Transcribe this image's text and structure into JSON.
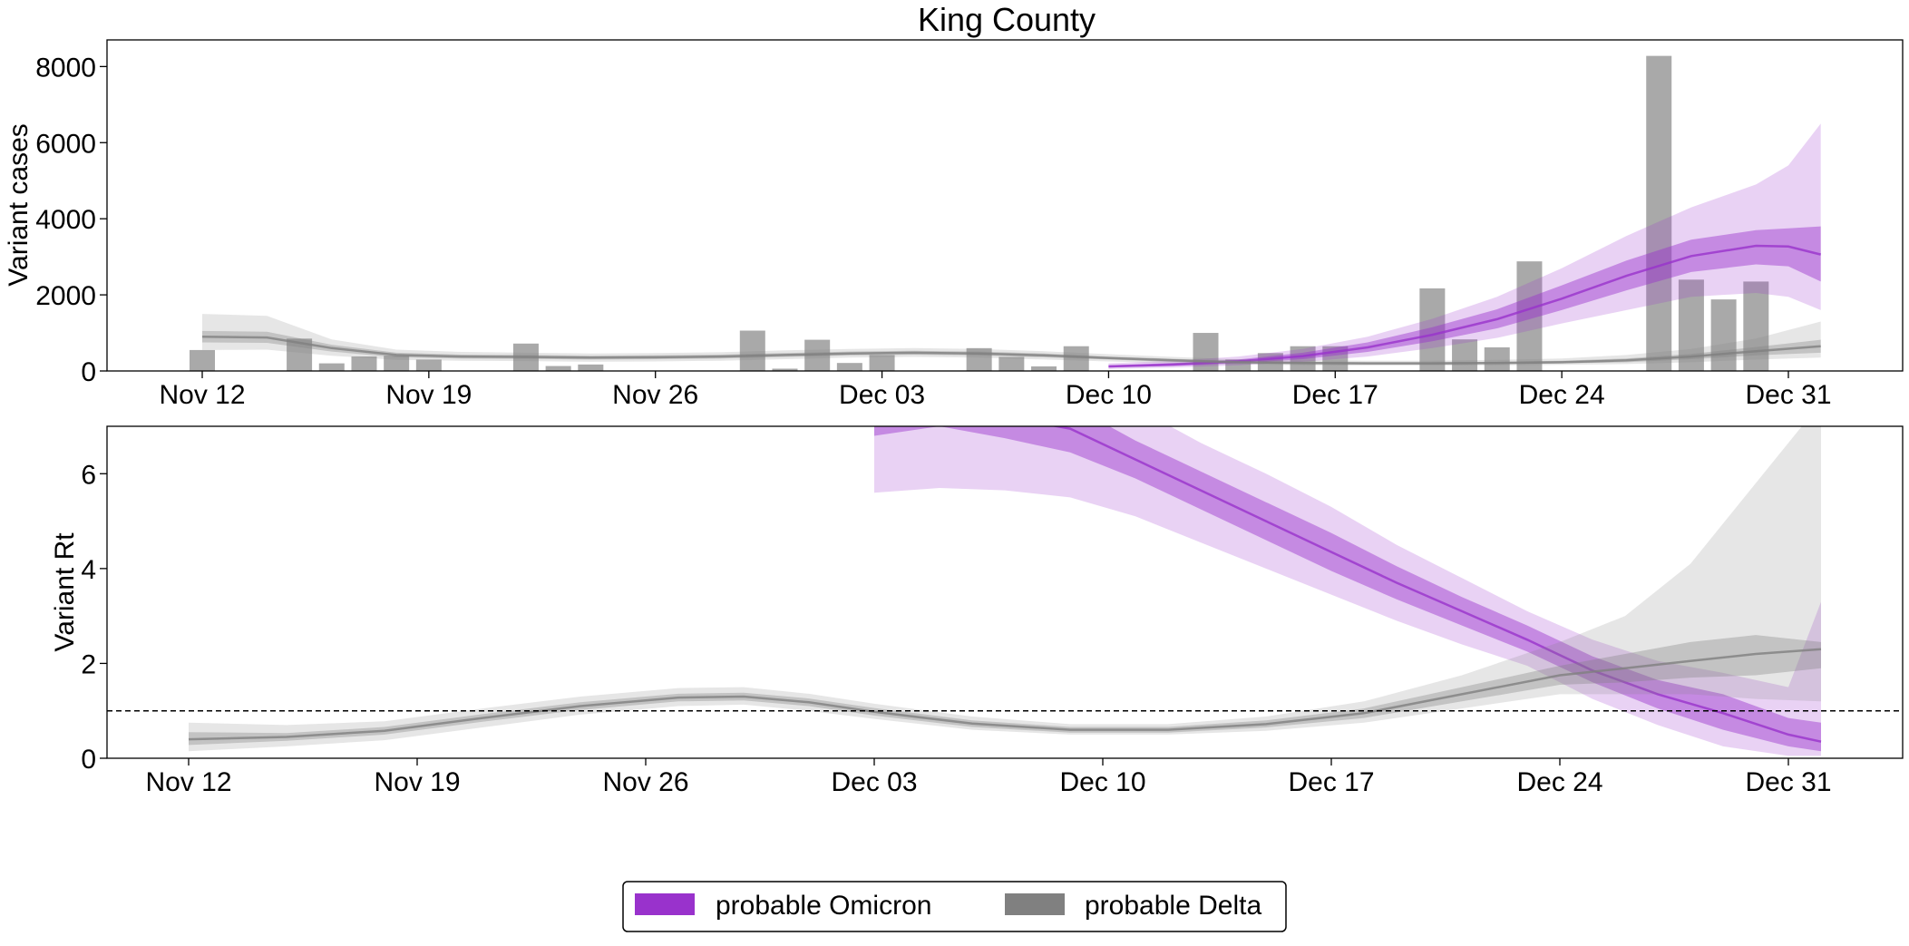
{
  "figure": {
    "title": "King County",
    "legend_position": "bottom-center"
  },
  "colors": {
    "omicron": "#9932cc",
    "delta": "#808080",
    "bars": "#a9a9a9",
    "reference_line": "#000000"
  },
  "legend": [
    {
      "label": "probable Omicron",
      "color": "#9932cc"
    },
    {
      "label": "probable Delta",
      "color": "#808080"
    }
  ],
  "chart_data": [
    {
      "type": "bar",
      "panel": "top",
      "title": "King County",
      "xlabel": "",
      "ylabel": "Variant cases",
      "x_ticks": [
        "Nov 12",
        "Nov 19",
        "Nov 26",
        "Dec 03",
        "Dec 10",
        "Dec 17",
        "Dec 24",
        "Dec 31"
      ],
      "y_ticks": [
        0,
        2000,
        4000,
        6000,
        8000
      ],
      "ylim": [
        0,
        8700
      ],
      "grid": false,
      "bars": {
        "dates": [
          "Nov 12",
          "Nov 15",
          "Nov 16",
          "Nov 17",
          "Nov 18",
          "Nov 19",
          "Nov 22",
          "Nov 23",
          "Nov 24",
          "Nov 29",
          "Nov 30",
          "Dec 01",
          "Dec 02",
          "Dec 03",
          "Dec 06",
          "Dec 07",
          "Dec 08",
          "Dec 09",
          "Dec 13",
          "Dec 14",
          "Dec 15",
          "Dec 16",
          "Dec 17",
          "Dec 20",
          "Dec 21",
          "Dec 22",
          "Dec 23",
          "Dec 27",
          "Dec 28",
          "Dec 29",
          "Dec 30"
        ],
        "values": [
          550,
          850,
          200,
          380,
          400,
          300,
          720,
          130,
          170,
          1060,
          60,
          820,
          210,
          420,
          600,
          370,
          120,
          650,
          1000,
          300,
          470,
          650,
          650,
          2170,
          830,
          620,
          2880,
          8280,
          2400,
          1880,
          2350
        ]
      },
      "series": [
        {
          "name": "probable Omicron",
          "dates": [
            "Dec 10",
            "Dec 12",
            "Dec 14",
            "Dec 16",
            "Dec 18",
            "Dec 20",
            "Dec 22",
            "Dec 24",
            "Dec 26",
            "Dec 28",
            "Dec 30",
            "Dec 31",
            "Jan 01"
          ],
          "median": [
            120,
            170,
            250,
            390,
            620,
            950,
            1360,
            1900,
            2500,
            3020,
            3290,
            3270,
            3060
          ],
          "ci50": [
            [
              90,
              150
            ],
            [
              130,
              210
            ],
            [
              200,
              300
            ],
            [
              310,
              480
            ],
            [
              500,
              750
            ],
            [
              780,
              1150
            ],
            [
              1120,
              1620
            ],
            [
              1600,
              2250
            ],
            [
              2120,
              2900
            ],
            [
              2600,
              3450
            ],
            [
              2800,
              3700
            ],
            [
              2750,
              3750
            ],
            [
              2350,
              3800
            ]
          ],
          "ci95": [
            [
              50,
              200
            ],
            [
              90,
              270
            ],
            [
              150,
              380
            ],
            [
              240,
              580
            ],
            [
              380,
              900
            ],
            [
              600,
              1370
            ],
            [
              870,
              1950
            ],
            [
              1250,
              2700
            ],
            [
              1600,
              3550
            ],
            [
              1950,
              4300
            ],
            [
              2050,
              4900
            ],
            [
              1950,
              5400
            ],
            [
              1600,
              6500
            ]
          ]
        },
        {
          "name": "probable Delta",
          "dates": [
            "Nov 12",
            "Nov 14",
            "Nov 16",
            "Nov 18",
            "Nov 20",
            "Nov 22",
            "Nov 24",
            "Nov 26",
            "Nov 28",
            "Nov 30",
            "Dec 02",
            "Dec 04",
            "Dec 06",
            "Dec 08",
            "Dec 10",
            "Dec 12",
            "Dec 14",
            "Dec 16",
            "Dec 18",
            "Dec 20",
            "Dec 22",
            "Dec 24",
            "Dec 26",
            "Dec 28",
            "Dec 30",
            "Jan 01"
          ],
          "median": [
            900,
            880,
            600,
            420,
            380,
            370,
            350,
            360,
            380,
            420,
            460,
            480,
            460,
            410,
            340,
            280,
            230,
            210,
            200,
            200,
            210,
            230,
            280,
            380,
            520,
            650
          ],
          "ci50": [
            [
              750,
              1050
            ],
            [
              740,
              1030
            ],
            [
              510,
              690
            ],
            [
              360,
              480
            ],
            [
              330,
              430
            ],
            [
              320,
              420
            ],
            [
              300,
              400
            ],
            [
              310,
              410
            ],
            [
              330,
              430
            ],
            [
              370,
              470
            ],
            [
              410,
              510
            ],
            [
              430,
              530
            ],
            [
              410,
              510
            ],
            [
              360,
              460
            ],
            [
              300,
              380
            ],
            [
              240,
              320
            ],
            [
              200,
              260
            ],
            [
              180,
              240
            ],
            [
              170,
              230
            ],
            [
              170,
              230
            ],
            [
              180,
              240
            ],
            [
              200,
              270
            ],
            [
              230,
              330
            ],
            [
              310,
              450
            ],
            [
              410,
              630
            ],
            [
              480,
              820
            ]
          ],
          "ci95": [
            [
              550,
              1500
            ],
            [
              560,
              1450
            ],
            [
              400,
              830
            ],
            [
              290,
              560
            ],
            [
              270,
              500
            ],
            [
              260,
              480
            ],
            [
              240,
              460
            ],
            [
              250,
              470
            ],
            [
              270,
              490
            ],
            [
              310,
              540
            ],
            [
              350,
              580
            ],
            [
              370,
              600
            ],
            [
              350,
              580
            ],
            [
              300,
              520
            ],
            [
              250,
              440
            ],
            [
              200,
              370
            ],
            [
              170,
              300
            ],
            [
              150,
              280
            ],
            [
              140,
              270
            ],
            [
              140,
              270
            ],
            [
              150,
              290
            ],
            [
              160,
              330
            ],
            [
              180,
              420
            ],
            [
              230,
              580
            ],
            [
              300,
              850
            ],
            [
              350,
              1300
            ]
          ]
        }
      ]
    },
    {
      "type": "area",
      "panel": "bottom",
      "title": "",
      "xlabel": "",
      "ylabel": "Variant Rt",
      "x_ticks": [
        "Nov 12",
        "Nov 19",
        "Nov 26",
        "Dec 03",
        "Dec 10",
        "Dec 17",
        "Dec 24",
        "Dec 31"
      ],
      "y_ticks": [
        0,
        2,
        4,
        6
      ],
      "ylim": [
        0,
        7
      ],
      "grid": false,
      "reference_line": {
        "y": 1,
        "style": "dashed"
      },
      "series": [
        {
          "name": "probable Omicron",
          "dates": [
            "Dec 03",
            "Dec 05",
            "Dec 07",
            "Dec 09",
            "Dec 11",
            "Dec 13",
            "Dec 15",
            "Dec 17",
            "Dec 19",
            "Dec 21",
            "Dec 23",
            "Dec 25",
            "Dec 27",
            "Dec 29",
            "Dec 31",
            "Jan 01"
          ],
          "median": [
            7.5,
            7.4,
            7.2,
            6.95,
            6.3,
            5.65,
            5.0,
            4.35,
            3.7,
            3.1,
            2.5,
            1.85,
            1.35,
            0.95,
            0.5,
            0.35
          ],
          "ci50": [
            [
              6.8,
              8.2
            ],
            [
              7.0,
              8.0
            ],
            [
              6.75,
              7.7
            ],
            [
              6.45,
              7.45
            ],
            [
              5.9,
              6.7
            ],
            [
              5.25,
              6.05
            ],
            [
              4.6,
              5.4
            ],
            [
              3.95,
              4.75
            ],
            [
              3.35,
              4.05
            ],
            [
              2.8,
              3.4
            ],
            [
              2.25,
              2.8
            ],
            [
              1.6,
              2.15
            ],
            [
              1.05,
              1.65
            ],
            [
              0.6,
              1.35
            ],
            [
              0.25,
              0.85
            ],
            [
              0.15,
              0.75
            ]
          ],
          "ci95": [
            [
              5.6,
              9.0
            ],
            [
              5.7,
              8.8
            ],
            [
              5.65,
              8.5
            ],
            [
              5.5,
              8.1
            ],
            [
              5.1,
              7.4
            ],
            [
              4.55,
              6.65
            ],
            [
              4.0,
              6.0
            ],
            [
              3.45,
              5.3
            ],
            [
              2.9,
              4.5
            ],
            [
              2.4,
              3.8
            ],
            [
              1.95,
              3.1
            ],
            [
              1.25,
              2.5
            ],
            [
              0.7,
              2.05
            ],
            [
              0.25,
              1.8
            ],
            [
              0.05,
              1.5
            ],
            [
              0.05,
              3.3
            ]
          ]
        },
        {
          "name": "probable Delta",
          "dates": [
            "Nov 12",
            "Nov 15",
            "Nov 18",
            "Nov 21",
            "Nov 24",
            "Nov 27",
            "Nov 29",
            "Dec 01",
            "Dec 03",
            "Dec 06",
            "Dec 09",
            "Dec 12",
            "Dec 15",
            "Dec 18",
            "Dec 21",
            "Dec 24",
            "Dec 26",
            "Dec 28",
            "Dec 30",
            "Jan 01"
          ],
          "median": [
            0.4,
            0.45,
            0.58,
            0.85,
            1.1,
            1.28,
            1.3,
            1.18,
            0.98,
            0.73,
            0.6,
            0.6,
            0.72,
            0.95,
            1.35,
            1.75,
            1.9,
            2.05,
            2.2,
            2.3
          ],
          "ci50": [
            [
              0.28,
              0.55
            ],
            [
              0.37,
              0.53
            ],
            [
              0.5,
              0.66
            ],
            [
              0.77,
              0.93
            ],
            [
              1.02,
              1.18
            ],
            [
              1.2,
              1.36
            ],
            [
              1.22,
              1.38
            ],
            [
              1.1,
              1.26
            ],
            [
              0.9,
              1.06
            ],
            [
              0.66,
              0.8
            ],
            [
              0.54,
              0.66
            ],
            [
              0.54,
              0.66
            ],
            [
              0.65,
              0.8
            ],
            [
              0.85,
              1.05
            ],
            [
              1.2,
              1.5
            ],
            [
              1.55,
              1.95
            ],
            [
              1.6,
              2.2
            ],
            [
              1.7,
              2.45
            ],
            [
              1.75,
              2.6
            ],
            [
              1.9,
              2.45
            ]
          ],
          "ci95": [
            [
              0.15,
              0.75
            ],
            [
              0.25,
              0.7
            ],
            [
              0.38,
              0.78
            ],
            [
              0.65,
              1.05
            ],
            [
              0.92,
              1.3
            ],
            [
              1.1,
              1.48
            ],
            [
              1.13,
              1.5
            ],
            [
              1.0,
              1.36
            ],
            [
              0.83,
              1.15
            ],
            [
              0.6,
              0.88
            ],
            [
              0.5,
              0.72
            ],
            [
              0.5,
              0.72
            ],
            [
              0.58,
              0.88
            ],
            [
              0.75,
              1.2
            ],
            [
              1.05,
              1.75
            ],
            [
              1.35,
              2.45
            ],
            [
              1.35,
              3.0
            ],
            [
              1.35,
              4.1
            ],
            [
              1.25,
              5.8
            ],
            [
              1.2,
              7.5
            ]
          ]
        }
      ]
    }
  ]
}
